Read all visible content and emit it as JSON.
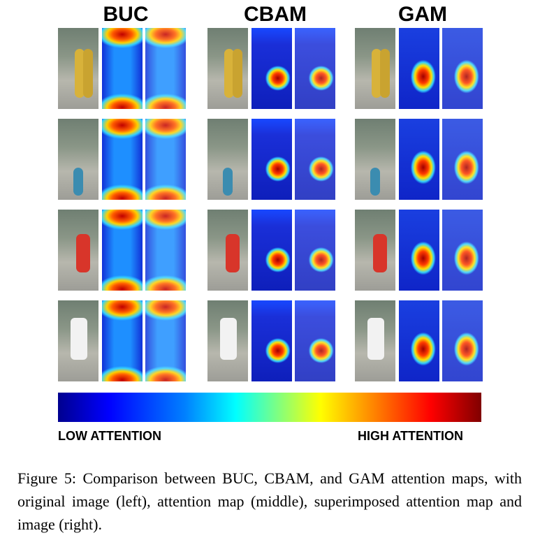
{
  "columns": [
    {
      "title": "BUC"
    },
    {
      "title": "CBAM"
    },
    {
      "title": "GAM"
    }
  ],
  "colorbar": {
    "low_label": "LOW ATTENTION",
    "high_label": "HIGH ATTENTION"
  },
  "caption": "Figure 5: Comparison between BUC, CBAM, and GAM attention maps, with original image (left), attention map (middle), superimposed attention map and image (right)."
}
